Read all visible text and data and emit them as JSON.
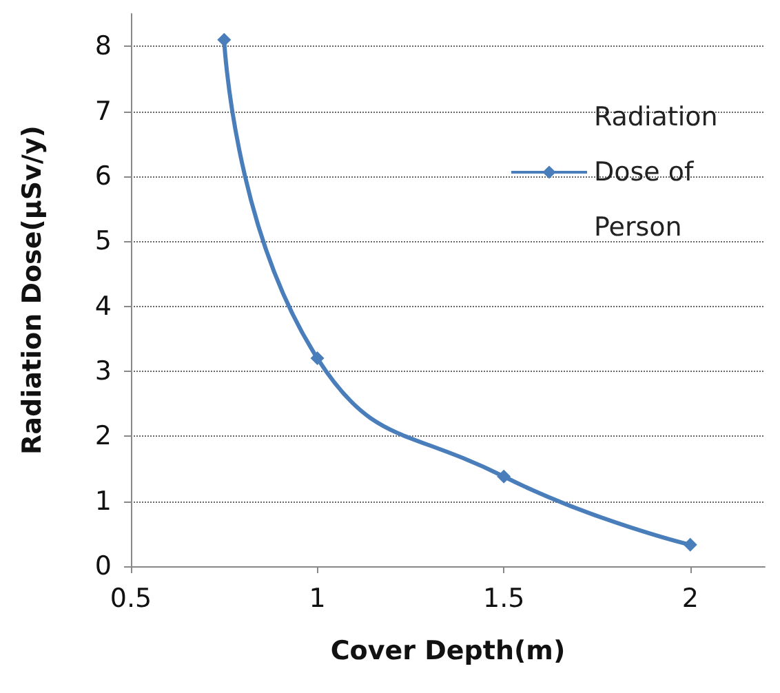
{
  "chart_data": {
    "type": "line",
    "xlabel": "Cover Depth(m)",
    "ylabel": "Radiation Dose(μSv/y)",
    "x": [
      0.75,
      1,
      1.5,
      2
    ],
    "series": [
      {
        "name": "Radiation Dose of Person",
        "color": "#4a7ebb",
        "values": [
          8.1,
          3.2,
          1.38,
          0.33
        ]
      }
    ],
    "xlim": [
      0.5,
      2.2
    ],
    "xticks": [
      0.5,
      1,
      1.5,
      2
    ],
    "ylim": [
      0,
      8.5
    ],
    "yticks": [
      0,
      1,
      2,
      3,
      4,
      5,
      6,
      7,
      8
    ],
    "grid": "y",
    "legend": "top right",
    "marker": "diamond",
    "line_style": "solid"
  }
}
